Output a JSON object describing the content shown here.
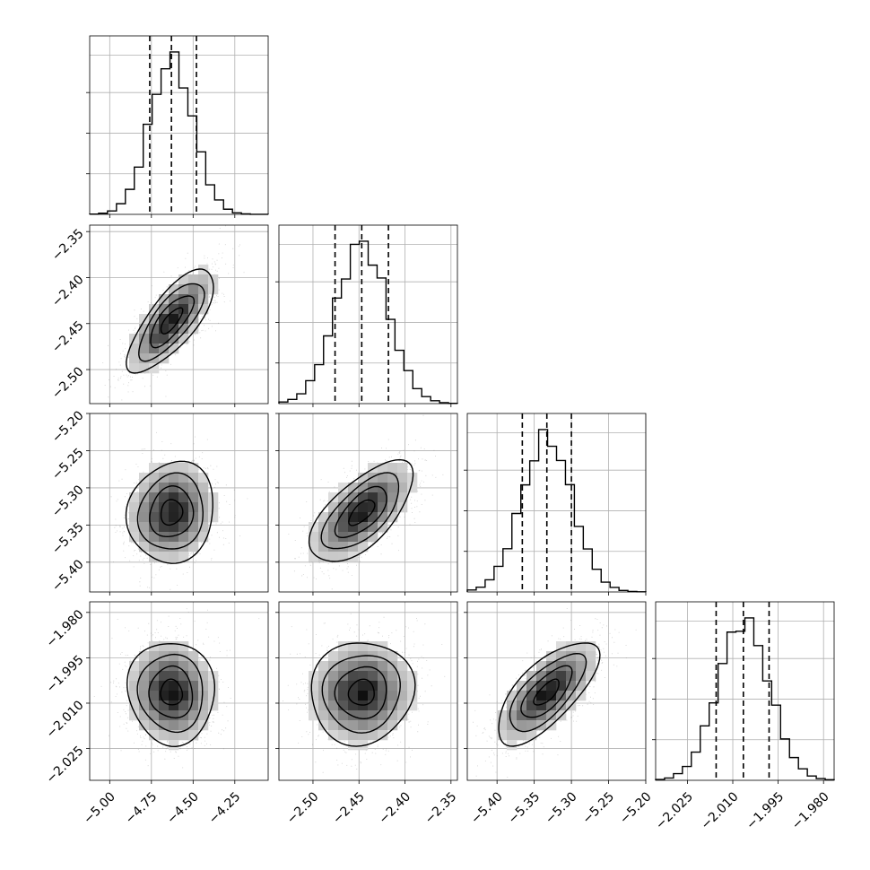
{
  "chart_data": {
    "type": "corner",
    "parameters": [
      {
        "axis_range": [
          -5.12,
          -4.05
        ],
        "median": -4.63,
        "q16": -4.76,
        "q84": -4.48,
        "sigma": 0.13,
        "ticks": [
          -5.0,
          -4.75,
          -4.5,
          -4.25
        ],
        "tick_labels": [
          "−5.00",
          "−4.75",
          "−4.50",
          "−4.25"
        ]
      },
      {
        "axis_range": [
          -2.537,
          -2.343
        ],
        "median": -2.447,
        "q16": -2.476,
        "q84": -2.418,
        "sigma": 0.028,
        "ticks": [
          -2.5,
          -2.45,
          -2.4,
          -2.35
        ],
        "tick_labels": [
          "−2.50",
          "−2.45",
          "−2.40",
          "−2.35"
        ]
      },
      {
        "axis_range": [
          -5.44,
          -5.2
        ],
        "median": -5.333,
        "q16": -5.366,
        "q84": -5.3,
        "sigma": 0.034,
        "ticks": [
          -5.4,
          -5.35,
          -5.3,
          -5.25,
          -5.2
        ],
        "tick_labels": [
          "−5.40",
          "−5.35",
          "−5.30",
          "−5.25",
          "−5.20"
        ]
      },
      {
        "axis_range": [
          -2.0355,
          -1.9765
        ],
        "median": -2.0065,
        "q16": -2.0155,
        "q84": -1.998,
        "sigma": 0.0085,
        "ticks": [
          -2.025,
          -2.01,
          -1.995,
          -1.98
        ],
        "tick_labels": [
          "−2.025",
          "−2.010",
          "−1.995",
          "−1.980"
        ]
      }
    ],
    "correlations": {
      "1-0": 0.75,
      "2-0": 0.1,
      "2-1": 0.65,
      "3-0": -0.05,
      "3-1": 0.05,
      "3-2": 0.7
    },
    "quantiles": [
      0.16,
      0.5,
      0.84
    ],
    "grid": true,
    "title": "",
    "xlabel": "",
    "ylabel": ""
  },
  "colors": {
    "line": "#000000",
    "grid": "#b0b0b0",
    "background": "#ffffff",
    "scatter": "#7a7a7a"
  }
}
